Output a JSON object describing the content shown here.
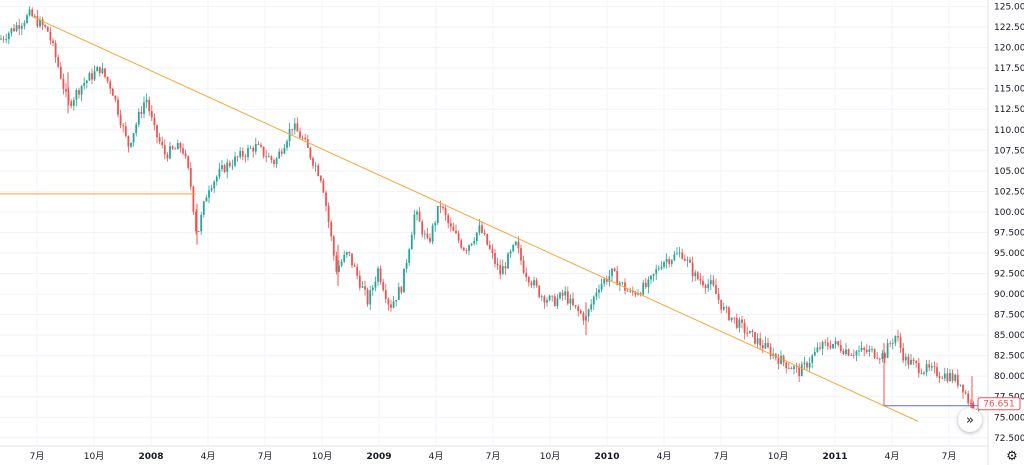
{
  "chart_data": {
    "type": "candlestick",
    "y_axis": {
      "ticks": [
        "125.000",
        "122.500",
        "120.000",
        "117.500",
        "115.000",
        "112.500",
        "110.000",
        "107.500",
        "105.000",
        "102.500",
        "100.000",
        "97.500",
        "95.000",
        "92.500",
        "90.000",
        "87.500",
        "85.000",
        "82.500",
        "80.000",
        "77.500",
        "75.000",
        "72.500"
      ],
      "ylim": [
        71.5,
        125.8
      ]
    },
    "x_axis": {
      "ticks": [
        {
          "label": "7月",
          "year": false
        },
        {
          "label": "10月",
          "year": false
        },
        {
          "label": "2008",
          "year": true
        },
        {
          "label": "4月",
          "year": false
        },
        {
          "label": "7月",
          "year": false
        },
        {
          "label": "10月",
          "year": false
        },
        {
          "label": "2009",
          "year": true
        },
        {
          "label": "4月",
          "year": false
        },
        {
          "label": "7月",
          "year": false
        },
        {
          "label": "10月",
          "year": false
        },
        {
          "label": "2010",
          "year": true
        },
        {
          "label": "4月",
          "year": false
        },
        {
          "label": "7月",
          "year": false
        },
        {
          "label": "10月",
          "year": false
        },
        {
          "label": "2011",
          "year": true
        },
        {
          "label": "4月",
          "year": false
        },
        {
          "label": "7月",
          "year": false
        }
      ]
    },
    "price_path": [
      [
        0,
        121
      ],
      [
        30,
        124
      ],
      [
        48,
        122
      ],
      [
        60,
        117
      ],
      [
        68,
        113
      ],
      [
        82,
        115.5
      ],
      [
        100,
        117.5
      ],
      [
        112,
        115
      ],
      [
        128,
        108
      ],
      [
        146,
        114
      ],
      [
        154,
        110
      ],
      [
        165,
        107
      ],
      [
        182,
        108
      ],
      [
        190,
        104
      ],
      [
        197,
        97
      ],
      [
        208,
        103
      ],
      [
        225,
        105.5
      ],
      [
        255,
        108
      ],
      [
        275,
        106
      ],
      [
        292,
        110.5
      ],
      [
        302,
        109
      ],
      [
        322,
        104
      ],
      [
        336,
        93
      ],
      [
        348,
        95
      ],
      [
        368,
        89
      ],
      [
        378,
        93
      ],
      [
        390,
        88.5
      ],
      [
        402,
        91
      ],
      [
        415,
        100
      ],
      [
        428,
        96
      ],
      [
        440,
        101
      ],
      [
        450,
        98
      ],
      [
        465,
        95.5
      ],
      [
        480,
        98
      ],
      [
        500,
        92.5
      ],
      [
        516,
        96
      ],
      [
        524,
        93
      ],
      [
        540,
        90
      ],
      [
        553,
        89
      ],
      [
        565,
        90
      ],
      [
        572,
        88.5
      ],
      [
        586,
        87
      ],
      [
        598,
        91
      ],
      [
        612,
        92.5
      ],
      [
        630,
        90
      ],
      [
        648,
        91
      ],
      [
        662,
        94
      ],
      [
        682,
        95
      ],
      [
        696,
        92
      ],
      [
        712,
        91
      ],
      [
        724,
        88
      ],
      [
        750,
        85
      ],
      [
        780,
        82
      ],
      [
        800,
        80.5
      ],
      [
        820,
        83.5
      ],
      [
        832,
        84
      ],
      [
        850,
        83
      ],
      [
        870,
        83
      ],
      [
        884,
        82.5
      ],
      [
        890,
        84
      ],
      [
        896,
        85
      ],
      [
        905,
        82
      ],
      [
        920,
        81
      ],
      [
        935,
        80.5
      ],
      [
        950,
        80
      ],
      [
        962,
        79
      ],
      [
        970,
        76.5
      ],
      [
        990,
        76.7
      ]
    ],
    "last_price": "76.651",
    "trend_lines": [
      {
        "name": "descending-trendline",
        "from": [
          "2007-06",
          123.8
        ],
        "to": [
          "2011-06",
          74.5
        ],
        "color": "#f7a83a"
      },
      {
        "name": "horizontal-line",
        "from": [
          "2007-01",
          102.2
        ],
        "to": [
          "2008-03",
          102.2
        ],
        "color": "#f7a83a"
      },
      {
        "name": "support-line",
        "from": [
          "2011-03",
          76.4
        ],
        "to": [
          "2011-09",
          76.4
        ],
        "color": "#5b6cd0"
      }
    ],
    "colors": {
      "up": "#26a69a",
      "down": "#ef5350",
      "trend": "#f7a83a",
      "support": "#5b6cd0",
      "price_tag": "#ef5350",
      "grid": "#f0f3fa"
    },
    "grid": true
  },
  "icons": {
    "scroll_to_latest": "double-chevron-right-icon",
    "settings": "gear-icon"
  }
}
